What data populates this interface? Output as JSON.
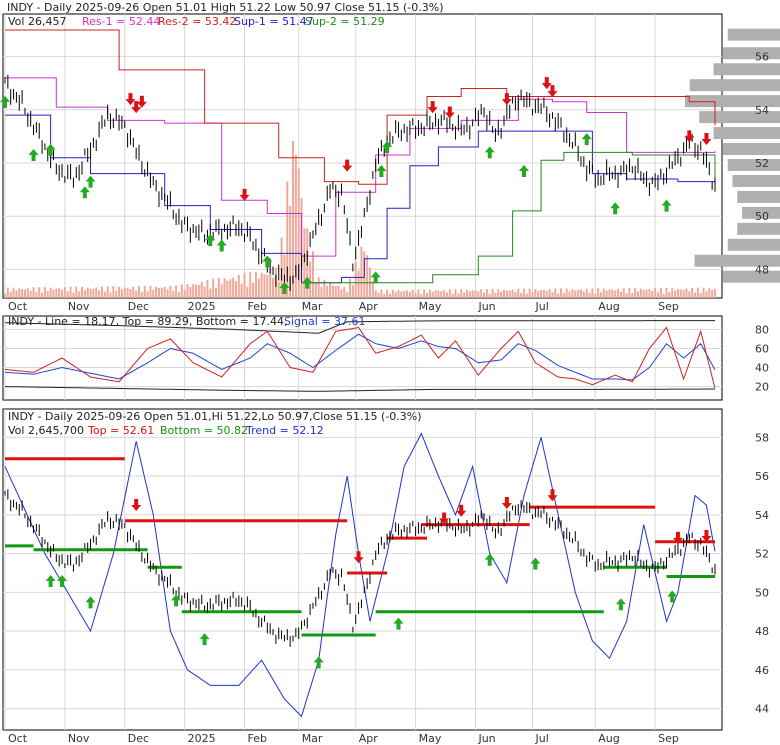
{
  "chart_data": [
    {
      "type": "line",
      "panel": "price",
      "header": {
        "title": "INDY - Daily 2025-09-26 Open 51.01  High 51.22  Low 50.97  Close 51.15 (-0.3%)",
        "volume": "Vol 26,457",
        "res1": "Res-1 = 52.44",
        "res2": "Res-2 = 53.42",
        "sup1": "Sup-1 = 51.47",
        "sup2": "Sup-2 = 51.29"
      },
      "colors": {
        "price": "#000000",
        "res1": "#cc33cc",
        "res2": "#cc2222",
        "sup1": "#2222cc",
        "sup2": "#228822",
        "volume": "#f0a898",
        "up_arrow": "#22aa22",
        "down_arrow": "#dd1111",
        "profile": "#b0b0b0"
      },
      "ylim": [
        47,
        57
      ],
      "yticks": [
        48,
        50,
        52,
        54,
        56
      ],
      "x_labels": [
        "Oct",
        "Nov",
        "Dec",
        "2025",
        "Feb",
        "Mar",
        "Apr",
        "May",
        "Jun",
        "Jul",
        "Aug",
        "Sep"
      ],
      "x_label_pos": [
        0,
        21,
        42,
        63,
        84,
        103,
        123,
        144,
        165,
        185,
        207,
        228
      ],
      "n_days": 250,
      "close_knots": [
        [
          0,
          55.0
        ],
        [
          6,
          54.2
        ],
        [
          12,
          53.0
        ],
        [
          18,
          51.8
        ],
        [
          24,
          51.4
        ],
        [
          30,
          52.5
        ],
        [
          36,
          53.8
        ],
        [
          42,
          53.4
        ],
        [
          46,
          52.4
        ],
        [
          52,
          51.2
        ],
        [
          58,
          50.4
        ],
        [
          62,
          49.7
        ],
        [
          66,
          49.5
        ],
        [
          70,
          49.3
        ],
        [
          76,
          49.5
        ],
        [
          82,
          49.6
        ],
        [
          86,
          49.2
        ],
        [
          90,
          48.5
        ],
        [
          96,
          47.7
        ],
        [
          102,
          47.7
        ],
        [
          106,
          48.7
        ],
        [
          110,
          49.8
        ],
        [
          114,
          51.0
        ],
        [
          118,
          50.9
        ],
        [
          122,
          48.3
        ],
        [
          126,
          49.9
        ],
        [
          130,
          52.0
        ],
        [
          134,
          52.8
        ],
        [
          138,
          53.2
        ],
        [
          144,
          53.3
        ],
        [
          148,
          53.4
        ],
        [
          152,
          53.6
        ],
        [
          156,
          53.5
        ],
        [
          160,
          53.2
        ],
        [
          164,
          53.5
        ],
        [
          168,
          54.0
        ],
        [
          172,
          53.0
        ],
        [
          176,
          53.8
        ],
        [
          180,
          54.5
        ],
        [
          184,
          54.2
        ],
        [
          188,
          54.1
        ],
        [
          192,
          53.7
        ],
        [
          196,
          53.2
        ],
        [
          200,
          52.6
        ],
        [
          204,
          51.8
        ],
        [
          208,
          51.4
        ],
        [
          212,
          51.6
        ],
        [
          216,
          51.6
        ],
        [
          220,
          51.9
        ],
        [
          224,
          51.4
        ],
        [
          228,
          51.2
        ],
        [
          232,
          51.7
        ],
        [
          236,
          52.2
        ],
        [
          240,
          52.8
        ],
        [
          244,
          52.5
        ],
        [
          249,
          51.15
        ]
      ],
      "res1_steps": [
        [
          0,
          55.2
        ],
        [
          18,
          54.1
        ],
        [
          36,
          53.6
        ],
        [
          56,
          53.5
        ],
        [
          76,
          50.6
        ],
        [
          92,
          50.1
        ],
        [
          104,
          48.5
        ],
        [
          116,
          50.9
        ],
        [
          130,
          52.3
        ],
        [
          142,
          53.3
        ],
        [
          160,
          53.6
        ],
        [
          180,
          54.4
        ],
        [
          192,
          54.3
        ],
        [
          204,
          53.9
        ],
        [
          218,
          52.4
        ],
        [
          249,
          52.44
        ]
      ],
      "res2_steps": [
        [
          0,
          57.0
        ],
        [
          40,
          55.5
        ],
        [
          70,
          53.5
        ],
        [
          96,
          52.2
        ],
        [
          112,
          51.3
        ],
        [
          124,
          51.2
        ],
        [
          134,
          53.8
        ],
        [
          148,
          54.5
        ],
        [
          160,
          54.8
        ],
        [
          176,
          54.5
        ],
        [
          240,
          54.3
        ],
        [
          249,
          53.42
        ]
      ],
      "sup1_steps": [
        [
          0,
          53.8
        ],
        [
          16,
          52.2
        ],
        [
          30,
          51.6
        ],
        [
          48,
          51.6
        ],
        [
          56,
          50.4
        ],
        [
          72,
          49.5
        ],
        [
          90,
          48.6
        ],
        [
          104,
          47.5
        ],
        [
          118,
          47.7
        ],
        [
          126,
          48.4
        ],
        [
          134,
          50.3
        ],
        [
          142,
          51.9
        ],
        [
          152,
          52.6
        ],
        [
          166,
          53.2
        ],
        [
          180,
          53.2
        ],
        [
          196,
          53.2
        ],
        [
          206,
          51.6
        ],
        [
          218,
          51.4
        ],
        [
          236,
          51.3
        ],
        [
          249,
          51.47
        ]
      ],
      "sup2_steps": [
        [
          104,
          47.5
        ],
        [
          140,
          47.5
        ],
        [
          150,
          47.8
        ],
        [
          166,
          48.5
        ],
        [
          178,
          50.2
        ],
        [
          188,
          52.1
        ],
        [
          196,
          52.4
        ],
        [
          220,
          52.3
        ],
        [
          249,
          51.29
        ]
      ],
      "volume_knots": [
        [
          0,
          0.05
        ],
        [
          60,
          0.06
        ],
        [
          96,
          0.15
        ],
        [
          100,
          0.7
        ],
        [
          102,
          0.9
        ],
        [
          104,
          0.55
        ],
        [
          106,
          0.35
        ],
        [
          110,
          0.1
        ],
        [
          120,
          0.05
        ],
        [
          126,
          0.3
        ],
        [
          130,
          0.04
        ],
        [
          249,
          0.05
        ]
      ],
      "up_arrows": [
        [
          0,
          54.6
        ],
        [
          10,
          52.6
        ],
        [
          16,
          52.8
        ],
        [
          28,
          51.2
        ],
        [
          30,
          51.6
        ],
        [
          72,
          49.4
        ],
        [
          76,
          49.2
        ],
        [
          92,
          48.6
        ],
        [
          98,
          47.6
        ],
        [
          106,
          47.8
        ],
        [
          130,
          48.0
        ],
        [
          132,
          52.0
        ],
        [
          134,
          52.9
        ],
        [
          170,
          52.7
        ],
        [
          182,
          52.0
        ],
        [
          204,
          53.2
        ],
        [
          214,
          50.6
        ],
        [
          232,
          50.7
        ]
      ],
      "down_arrows": [
        [
          44,
          54.1
        ],
        [
          46,
          53.8
        ],
        [
          48,
          54.0
        ],
        [
          84,
          50.5
        ],
        [
          120,
          51.6
        ],
        [
          150,
          53.8
        ],
        [
          156,
          53.6
        ],
        [
          176,
          54.1
        ],
        [
          190,
          54.7
        ],
        [
          192,
          54.4
        ],
        [
          240,
          52.7
        ],
        [
          246,
          52.6
        ]
      ],
      "profile_rows": [
        [
          56.6,
          0.55
        ],
        [
          55.9,
          0.6
        ],
        [
          55.3,
          0.7
        ],
        [
          54.7,
          0.95
        ],
        [
          54.1,
          1.0
        ],
        [
          53.5,
          0.85
        ],
        [
          52.9,
          0.7
        ],
        [
          52.3,
          0.6
        ],
        [
          51.7,
          0.55
        ],
        [
          51.1,
          0.5
        ],
        [
          50.5,
          0.45
        ],
        [
          49.9,
          0.4
        ],
        [
          49.3,
          0.45
        ],
        [
          48.7,
          0.55
        ],
        [
          48.1,
          0.9
        ],
        [
          47.5,
          0.6
        ]
      ]
    },
    {
      "type": "line",
      "panel": "oscillator",
      "header": {
        "title": "INDY - Line = 18.17, Top = 89.29, Bottom = 17.44,",
        "signal": "Signal = 37.61"
      },
      "colors": {
        "line": "#cc2222",
        "signal": "#2244cc",
        "top": "#222222",
        "bottom": "#222222"
      },
      "ylim": [
        8,
        92
      ],
      "yticks": [
        20,
        40,
        60,
        80
      ],
      "line_knots": [
        [
          0,
          38
        ],
        [
          10,
          35
        ],
        [
          20,
          50
        ],
        [
          30,
          30
        ],
        [
          40,
          25
        ],
        [
          50,
          60
        ],
        [
          58,
          70
        ],
        [
          66,
          45
        ],
        [
          76,
          30
        ],
        [
          86,
          65
        ],
        [
          92,
          78
        ],
        [
          100,
          40
        ],
        [
          108,
          35
        ],
        [
          116,
          78
        ],
        [
          124,
          82
        ],
        [
          130,
          55
        ],
        [
          138,
          62
        ],
        [
          146,
          74
        ],
        [
          152,
          50
        ],
        [
          158,
          68
        ],
        [
          166,
          32
        ],
        [
          174,
          60
        ],
        [
          180,
          78
        ],
        [
          186,
          45
        ],
        [
          194,
          30
        ],
        [
          200,
          28
        ],
        [
          206,
          22
        ],
        [
          214,
          32
        ],
        [
          220,
          25
        ],
        [
          226,
          60
        ],
        [
          232,
          82
        ],
        [
          238,
          28
        ],
        [
          244,
          78
        ],
        [
          249,
          18.17
        ]
      ],
      "signal_knots": [
        [
          0,
          35
        ],
        [
          10,
          33
        ],
        [
          20,
          40
        ],
        [
          30,
          34
        ],
        [
          40,
          28
        ],
        [
          50,
          45
        ],
        [
          58,
          60
        ],
        [
          66,
          55
        ],
        [
          76,
          38
        ],
        [
          86,
          50
        ],
        [
          92,
          65
        ],
        [
          100,
          55
        ],
        [
          108,
          40
        ],
        [
          116,
          58
        ],
        [
          124,
          75
        ],
        [
          130,
          65
        ],
        [
          138,
          60
        ],
        [
          146,
          68
        ],
        [
          152,
          62
        ],
        [
          158,
          60
        ],
        [
          166,
          45
        ],
        [
          174,
          48
        ],
        [
          180,
          65
        ],
        [
          186,
          58
        ],
        [
          194,
          42
        ],
        [
          200,
          35
        ],
        [
          206,
          28
        ],
        [
          214,
          28
        ],
        [
          220,
          27
        ],
        [
          226,
          40
        ],
        [
          232,
          65
        ],
        [
          238,
          50
        ],
        [
          244,
          65
        ],
        [
          249,
          37.61
        ]
      ],
      "top_knots": [
        [
          0,
          87
        ],
        [
          40,
          84
        ],
        [
          80,
          80
        ],
        [
          110,
          76
        ],
        [
          120,
          88
        ],
        [
          150,
          89
        ],
        [
          249,
          89.29
        ]
      ],
      "bottom_knots": [
        [
          0,
          20
        ],
        [
          40,
          18
        ],
        [
          80,
          16
        ],
        [
          110,
          15
        ],
        [
          150,
          17
        ],
        [
          200,
          17
        ],
        [
          249,
          17.44
        ]
      ]
    },
    {
      "type": "line",
      "panel": "trend",
      "header": {
        "title": "INDY - Daily 2025-09-26 Open 51.01,Hi 51.22,Lo 50.97,Close 51.15 (-0.3%)",
        "volume": "Vol 2,645,700",
        "top": "Top = 52.61",
        "bottom": "Bottom = 50.82",
        "trend": "Trend = 52.12"
      },
      "colors": {
        "price": "#000000",
        "top": "#dd1111",
        "bottom": "#119911",
        "trend": "#2233cc"
      },
      "ylim": [
        43,
        59
      ],
      "yticks": [
        44,
        46,
        48,
        50,
        52,
        54,
        56,
        58
      ],
      "x_labels": [
        "Oct",
        "Nov",
        "Dec",
        "2025",
        "Feb",
        "Mar",
        "Apr",
        "May",
        "Jun",
        "Jul",
        "Aug",
        "Sep"
      ],
      "x_label_pos": [
        0,
        21,
        42,
        63,
        84,
        103,
        123,
        144,
        165,
        185,
        207,
        228
      ],
      "trend_knots": [
        [
          0,
          56.5
        ],
        [
          14,
          52.0
        ],
        [
          30,
          48.0
        ],
        [
          38,
          52.0
        ],
        [
          46,
          57.8
        ],
        [
          52,
          54.0
        ],
        [
          58,
          48.0
        ],
        [
          64,
          46.0
        ],
        [
          72,
          45.2
        ],
        [
          82,
          45.2
        ],
        [
          90,
          46.5
        ],
        [
          98,
          44.5
        ],
        [
          104,
          43.6
        ],
        [
          110,
          46.5
        ],
        [
          116,
          53.0
        ],
        [
          120,
          56.0
        ],
        [
          124,
          52.0
        ],
        [
          128,
          48.5
        ],
        [
          134,
          52.0
        ],
        [
          140,
          56.5
        ],
        [
          146,
          58.2
        ],
        [
          152,
          56.0
        ],
        [
          158,
          54.0
        ],
        [
          164,
          56.5
        ],
        [
          170,
          52.0
        ],
        [
          176,
          50.5
        ],
        [
          182,
          55.0
        ],
        [
          188,
          58.0
        ],
        [
          194,
          54.0
        ],
        [
          200,
          50.0
        ],
        [
          206,
          47.5
        ],
        [
          212,
          46.6
        ],
        [
          218,
          48.5
        ],
        [
          224,
          53.5
        ],
        [
          228,
          51.0
        ],
        [
          232,
          48.5
        ],
        [
          236,
          50.0
        ],
        [
          242,
          55.0
        ],
        [
          246,
          54.5
        ],
        [
          249,
          52.12
        ]
      ],
      "top_segments": [
        [
          0,
          42,
          56.9
        ],
        [
          42,
          120,
          53.7
        ],
        [
          120,
          134,
          51.0
        ],
        [
          134,
          148,
          52.8
        ],
        [
          146,
          184,
          53.5
        ],
        [
          184,
          228,
          54.4
        ],
        [
          228,
          249,
          52.61
        ]
      ],
      "bottom_segments": [
        [
          0,
          10,
          52.4
        ],
        [
          10,
          50,
          52.2
        ],
        [
          50,
          62,
          51.3
        ],
        [
          62,
          104,
          49.0
        ],
        [
          104,
          130,
          47.8
        ],
        [
          130,
          210,
          49.0
        ],
        [
          210,
          232,
          51.3
        ],
        [
          232,
          249,
          50.82
        ]
      ],
      "up_arrows": [
        [
          16,
          51.0
        ],
        [
          20,
          51.0
        ],
        [
          30,
          49.9
        ],
        [
          60,
          50.0
        ],
        [
          70,
          48.0
        ],
        [
          110,
          46.8
        ],
        [
          138,
          48.8
        ],
        [
          170,
          52.1
        ],
        [
          186,
          51.9
        ],
        [
          216,
          49.8
        ],
        [
          234,
          50.2
        ]
      ],
      "down_arrows": [
        [
          46,
          54.1
        ],
        [
          124,
          51.4
        ],
        [
          154,
          53.4
        ],
        [
          160,
          53.8
        ],
        [
          176,
          54.2
        ],
        [
          192,
          54.6
        ],
        [
          236,
          52.4
        ],
        [
          246,
          52.5
        ]
      ]
    }
  ]
}
